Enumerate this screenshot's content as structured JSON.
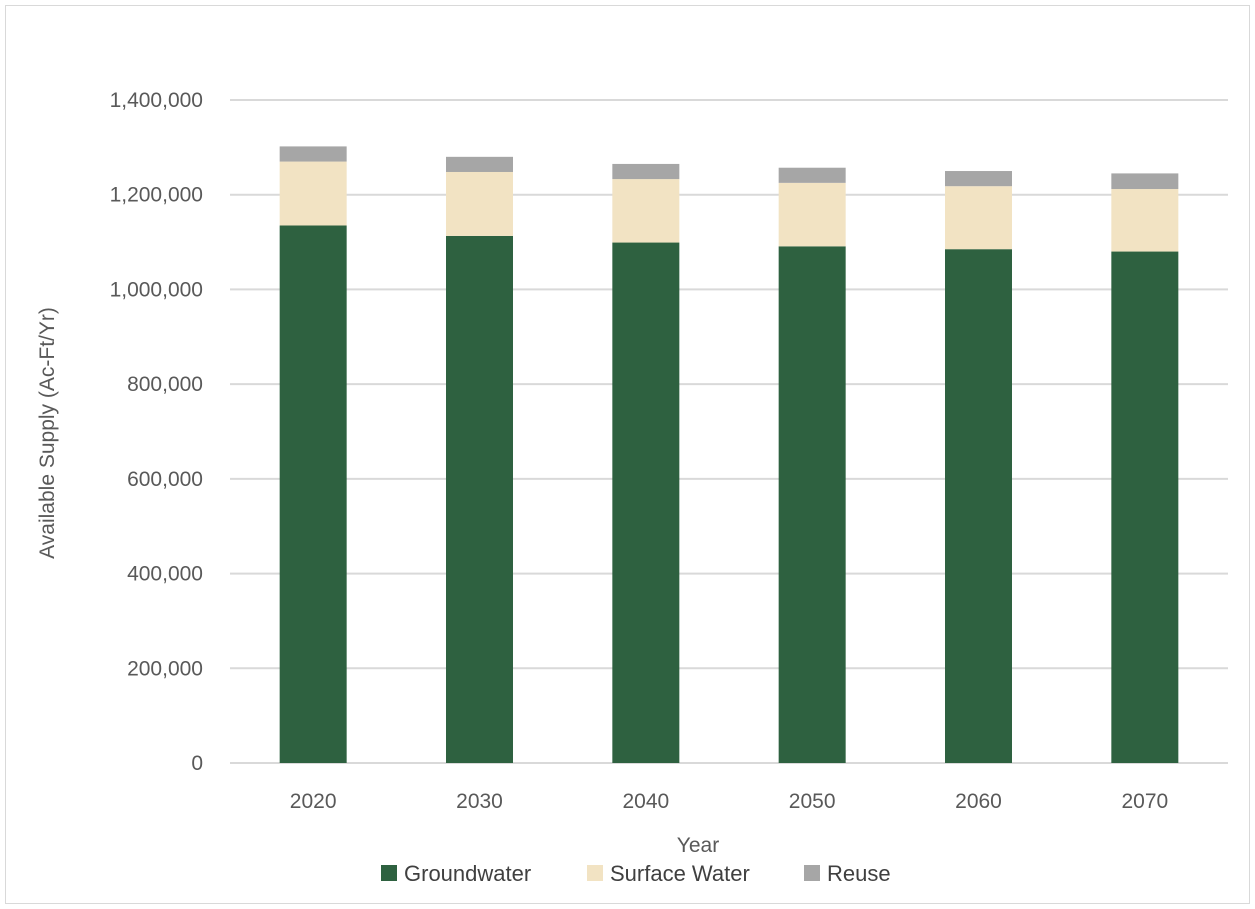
{
  "chart_data": {
    "type": "bar",
    "stacked": true,
    "categories": [
      "2020",
      "2030",
      "2040",
      "2050",
      "2060",
      "2070"
    ],
    "series": [
      {
        "name": "Groundwater",
        "color": "#2e6140",
        "values": [
          1135000,
          1113000,
          1099000,
          1091000,
          1085000,
          1080000
        ]
      },
      {
        "name": "Surface Water",
        "color": "#f2e3c3",
        "values": [
          135000,
          135000,
          134000,
          134000,
          133000,
          132000
        ]
      },
      {
        "name": "Reuse",
        "color": "#a6a6a6",
        "values": [
          32000,
          32000,
          32000,
          32000,
          32000,
          33000
        ]
      }
    ],
    "xlabel": "Year",
    "ylabel": "Available Supply (Ac-Ft/Yr)",
    "ylim": [
      0,
      1400000
    ],
    "yticks": [
      0,
      200000,
      400000,
      600000,
      800000,
      1000000,
      1200000,
      1400000
    ],
    "ytick_labels": [
      "0",
      "200,000",
      "400,000",
      "600,000",
      "800,000",
      "1,000,000",
      "1,200,000",
      "1,400,000"
    ],
    "grid": true,
    "legend_position": "bottom"
  },
  "colors": {
    "gridline": "#d9d9d9",
    "axis_text": "#595959"
  }
}
